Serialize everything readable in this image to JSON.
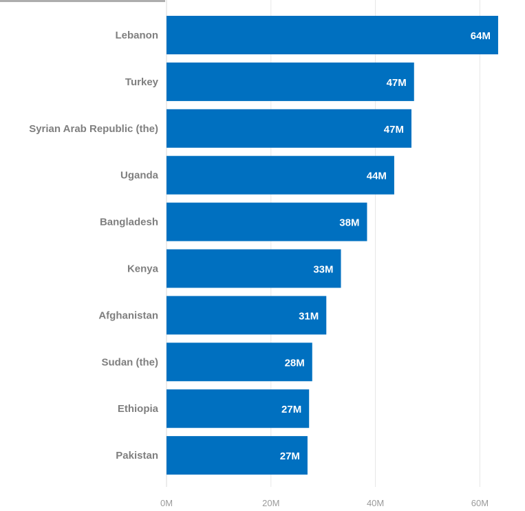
{
  "chart_data": {
    "type": "bar",
    "orientation": "horizontal",
    "categories": [
      "Lebanon",
      "Turkey",
      "Syrian Arab Republic (the)",
      "Uganda",
      "Bangladesh",
      "Kenya",
      "Afghanistan",
      "Sudan (the)",
      "Ethiopia",
      "Pakistan"
    ],
    "values": [
      63.5,
      47.4,
      46.9,
      43.6,
      38.4,
      33.4,
      30.6,
      27.9,
      27.3,
      27.0
    ],
    "data_labels": [
      "64M",
      "47M",
      "47M",
      "44M",
      "38M",
      "33M",
      "31M",
      "28M",
      "27M",
      "27M"
    ],
    "xlim": [
      0,
      65
    ],
    "x_ticks": [
      0,
      20,
      40,
      60
    ],
    "x_tick_labels": [
      "0M",
      "20M",
      "40M",
      "60M"
    ],
    "bar_color": "#0070c0",
    "grid": true,
    "title": "",
    "xlabel": "",
    "ylabel": ""
  }
}
